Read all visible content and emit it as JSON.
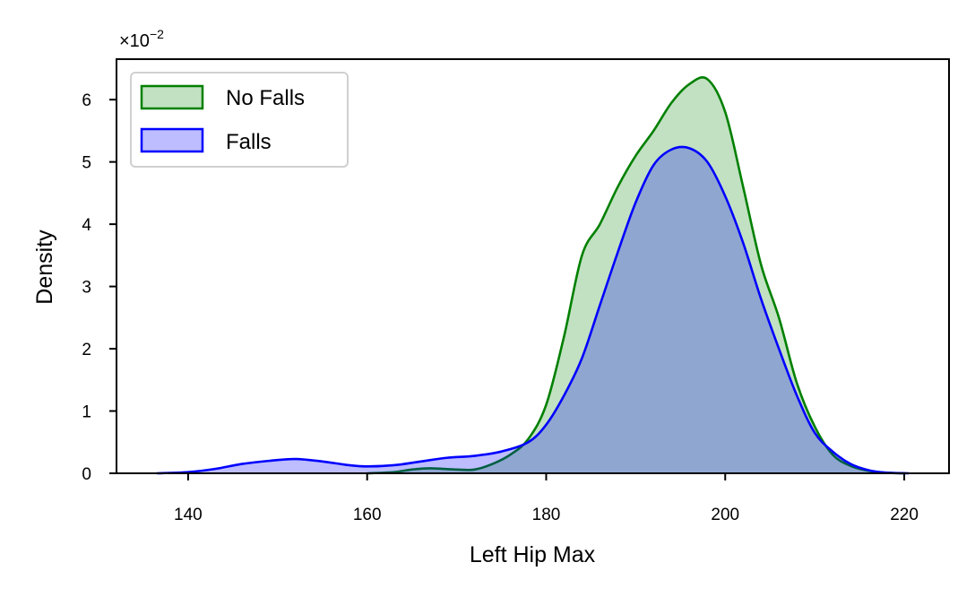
{
  "chart_data": {
    "type": "area",
    "xlabel": "Left Hip Max",
    "ylabel": "Density",
    "y_scale_label": "×10",
    "y_scale_exponent": "−2",
    "xlim": [
      132,
      225
    ],
    "ylim": [
      0,
      6.65
    ],
    "x_ticks": [
      140,
      160,
      180,
      200,
      220
    ],
    "y_ticks": [
      0,
      1,
      2,
      3,
      4,
      5,
      6
    ],
    "legend": {
      "position": "top-left",
      "entries": [
        "No Falls",
        "Falls"
      ]
    },
    "series": [
      {
        "name": "No Falls",
        "line_color": "#008000",
        "fill_color": "#008000",
        "fill_opacity": 0.24,
        "x": [
          160,
          163,
          165,
          167,
          170,
          172,
          174,
          176,
          178,
          180,
          182,
          184,
          186,
          188,
          190,
          192,
          194,
          196,
          198,
          200,
          202,
          204,
          206,
          208,
          210,
          212,
          214,
          216,
          218,
          220
        ],
        "y": [
          0.0,
          0.02,
          0.06,
          0.08,
          0.06,
          0.06,
          0.15,
          0.3,
          0.55,
          1.1,
          2.2,
          3.5,
          4.0,
          4.6,
          5.1,
          5.5,
          5.95,
          6.25,
          6.33,
          5.8,
          4.6,
          3.35,
          2.5,
          1.45,
          0.75,
          0.3,
          0.12,
          0.04,
          0.01,
          0.0
        ]
      },
      {
        "name": "Falls",
        "line_color": "#0000ff",
        "fill_color": "#0000ff",
        "fill_opacity": 0.26,
        "x": [
          136.5,
          140,
          143,
          146,
          149,
          152,
          155,
          158,
          160,
          163,
          166,
          169,
          172,
          175,
          178,
          180,
          182,
          184,
          186,
          188,
          190,
          192,
          194,
          196,
          198,
          200,
          202,
          204,
          206,
          208,
          210,
          212,
          214,
          216,
          218,
          220.5
        ],
        "y": [
          0.0,
          0.02,
          0.07,
          0.15,
          0.2,
          0.23,
          0.19,
          0.13,
          0.11,
          0.13,
          0.19,
          0.25,
          0.28,
          0.35,
          0.5,
          0.78,
          1.25,
          1.85,
          2.7,
          3.55,
          4.35,
          4.95,
          5.2,
          5.22,
          5.0,
          4.45,
          3.7,
          2.8,
          2.0,
          1.25,
          0.65,
          0.35,
          0.15,
          0.05,
          0.01,
          0.0
        ]
      }
    ]
  }
}
